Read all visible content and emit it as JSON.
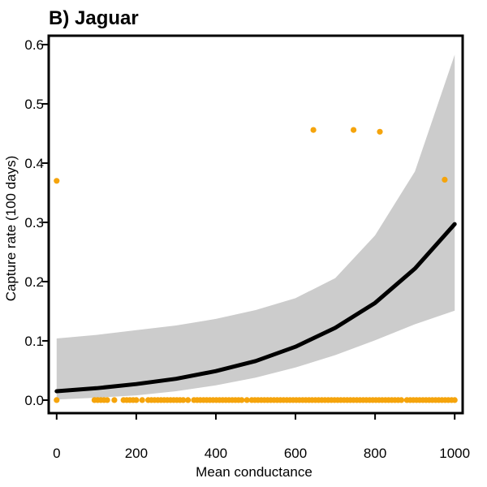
{
  "chart_data": {
    "type": "scatter",
    "title": "B) Jaguar",
    "xlabel": "Mean conductance",
    "ylabel": "Capture rate (100 days)",
    "xlim": [
      -20,
      1020
    ],
    "ylim": [
      -0.022,
      0.615
    ],
    "x_ticks": [
      0,
      200,
      400,
      600,
      800,
      1000
    ],
    "y_ticks": [
      0.0,
      0.1,
      0.2,
      0.3,
      0.4,
      0.5,
      0.6
    ],
    "x_tick_labels": [
      "0",
      "200",
      "400",
      "600",
      "800",
      "1000"
    ],
    "y_tick_labels": [
      "0.0",
      "0.1",
      "0.2",
      "0.3",
      "0.4",
      "0.5",
      "0.6"
    ],
    "grid": false,
    "legend": "none",
    "colors": {
      "points": "#f5a40c",
      "fit": "#000000",
      "ci": "#cccccc"
    },
    "series": [
      {
        "kind": "points",
        "points": [
          {
            "x": 0,
            "y": 0.37
          },
          {
            "x": 0,
            "y": 0.0
          },
          {
            "x": 645,
            "y": 0.456
          },
          {
            "x": 746,
            "y": 0.456
          },
          {
            "x": 812,
            "y": 0.453
          },
          {
            "x": 975,
            "y": 0.372
          },
          {
            "x": 95,
            "y": 0.0
          },
          {
            "x": 103,
            "y": 0.0
          },
          {
            "x": 111,
            "y": 0.0
          },
          {
            "x": 119,
            "y": 0.0
          },
          {
            "x": 127,
            "y": 0.0
          },
          {
            "x": 145,
            "y": 0.0
          },
          {
            "x": 168,
            "y": 0.0
          },
          {
            "x": 176,
            "y": 0.0
          },
          {
            "x": 184,
            "y": 0.0
          },
          {
            "x": 192,
            "y": 0.0
          },
          {
            "x": 200,
            "y": 0.0
          },
          {
            "x": 215,
            "y": 0.0
          },
          {
            "x": 230,
            "y": 0.0
          },
          {
            "x": 238,
            "y": 0.0
          },
          {
            "x": 246,
            "y": 0.0
          },
          {
            "x": 254,
            "y": 0.0
          },
          {
            "x": 262,
            "y": 0.0
          },
          {
            "x": 270,
            "y": 0.0
          },
          {
            "x": 278,
            "y": 0.0
          },
          {
            "x": 286,
            "y": 0.0
          },
          {
            "x": 294,
            "y": 0.0
          },
          {
            "x": 302,
            "y": 0.0
          },
          {
            "x": 310,
            "y": 0.0
          },
          {
            "x": 318,
            "y": 0.0
          },
          {
            "x": 330,
            "y": 0.0
          },
          {
            "x": 345,
            "y": 0.0
          },
          {
            "x": 353,
            "y": 0.0
          },
          {
            "x": 361,
            "y": 0.0
          },
          {
            "x": 369,
            "y": 0.0
          },
          {
            "x": 377,
            "y": 0.0
          },
          {
            "x": 385,
            "y": 0.0
          },
          {
            "x": 393,
            "y": 0.0
          },
          {
            "x": 401,
            "y": 0.0
          },
          {
            "x": 409,
            "y": 0.0
          },
          {
            "x": 417,
            "y": 0.0
          },
          {
            "x": 425,
            "y": 0.0
          },
          {
            "x": 433,
            "y": 0.0
          },
          {
            "x": 441,
            "y": 0.0
          },
          {
            "x": 449,
            "y": 0.0
          },
          {
            "x": 457,
            "y": 0.0
          },
          {
            "x": 465,
            "y": 0.0
          },
          {
            "x": 478,
            "y": 0.0
          },
          {
            "x": 490,
            "y": 0.0
          },
          {
            "x": 498,
            "y": 0.0
          },
          {
            "x": 506,
            "y": 0.0
          },
          {
            "x": 514,
            "y": 0.0
          },
          {
            "x": 522,
            "y": 0.0
          },
          {
            "x": 530,
            "y": 0.0
          },
          {
            "x": 538,
            "y": 0.0
          },
          {
            "x": 546,
            "y": 0.0
          },
          {
            "x": 554,
            "y": 0.0
          },
          {
            "x": 562,
            "y": 0.0
          },
          {
            "x": 570,
            "y": 0.0
          },
          {
            "x": 578,
            "y": 0.0
          },
          {
            "x": 586,
            "y": 0.0
          },
          {
            "x": 594,
            "y": 0.0
          },
          {
            "x": 602,
            "y": 0.0
          },
          {
            "x": 610,
            "y": 0.0
          },
          {
            "x": 618,
            "y": 0.0
          },
          {
            "x": 626,
            "y": 0.0
          },
          {
            "x": 634,
            "y": 0.0
          },
          {
            "x": 642,
            "y": 0.0
          },
          {
            "x": 650,
            "y": 0.0
          },
          {
            "x": 658,
            "y": 0.0
          },
          {
            "x": 666,
            "y": 0.0
          },
          {
            "x": 674,
            "y": 0.0
          },
          {
            "x": 682,
            "y": 0.0
          },
          {
            "x": 690,
            "y": 0.0
          },
          {
            "x": 698,
            "y": 0.0
          },
          {
            "x": 706,
            "y": 0.0
          },
          {
            "x": 714,
            "y": 0.0
          },
          {
            "x": 722,
            "y": 0.0
          },
          {
            "x": 730,
            "y": 0.0
          },
          {
            "x": 738,
            "y": 0.0
          },
          {
            "x": 746,
            "y": 0.0
          },
          {
            "x": 754,
            "y": 0.0
          },
          {
            "x": 762,
            "y": 0.0
          },
          {
            "x": 770,
            "y": 0.0
          },
          {
            "x": 778,
            "y": 0.0
          },
          {
            "x": 786,
            "y": 0.0
          },
          {
            "x": 794,
            "y": 0.0
          },
          {
            "x": 802,
            "y": 0.0
          },
          {
            "x": 810,
            "y": 0.0
          },
          {
            "x": 818,
            "y": 0.0
          },
          {
            "x": 826,
            "y": 0.0
          },
          {
            "x": 834,
            "y": 0.0
          },
          {
            "x": 842,
            "y": 0.0
          },
          {
            "x": 850,
            "y": 0.0
          },
          {
            "x": 858,
            "y": 0.0
          },
          {
            "x": 866,
            "y": 0.0
          },
          {
            "x": 880,
            "y": 0.0
          },
          {
            "x": 888,
            "y": 0.0
          },
          {
            "x": 896,
            "y": 0.0
          },
          {
            "x": 904,
            "y": 0.0
          },
          {
            "x": 912,
            "y": 0.0
          },
          {
            "x": 920,
            "y": 0.0
          },
          {
            "x": 928,
            "y": 0.0
          },
          {
            "x": 936,
            "y": 0.0
          },
          {
            "x": 944,
            "y": 0.0
          },
          {
            "x": 952,
            "y": 0.0
          },
          {
            "x": 960,
            "y": 0.0
          },
          {
            "x": 968,
            "y": 0.0
          },
          {
            "x": 976,
            "y": 0.0
          },
          {
            "x": 984,
            "y": 0.0
          },
          {
            "x": 992,
            "y": 0.0
          },
          {
            "x": 1000,
            "y": 0.0
          }
        ]
      },
      {
        "kind": "fit",
        "x": [
          0,
          100,
          200,
          300,
          400,
          500,
          600,
          700,
          800,
          900,
          1000
        ],
        "y": [
          0.015,
          0.02,
          0.027,
          0.036,
          0.049,
          0.066,
          0.09,
          0.122,
          0.164,
          0.222,
          0.297
        ],
        "ci_lower": [
          0.001,
          0.004,
          0.008,
          0.015,
          0.025,
          0.038,
          0.055,
          0.076,
          0.101,
          0.128,
          0.151
        ],
        "ci_upper": [
          0.104,
          0.11,
          0.118,
          0.126,
          0.137,
          0.152,
          0.172,
          0.206,
          0.278,
          0.386,
          0.583
        ]
      }
    ]
  }
}
